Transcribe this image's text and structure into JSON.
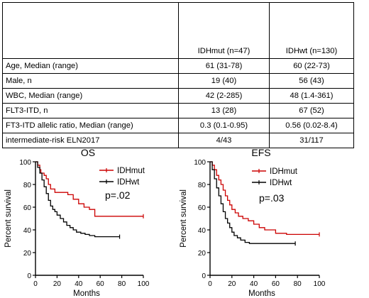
{
  "table": {
    "columns": [
      "",
      "IDHmut (n=47)",
      "IDHwt (n=130)"
    ],
    "rows": [
      [
        "Age, Median (range)",
        "61 (31-78)",
        "60 (22-73)"
      ],
      [
        "Male, n",
        "19 (40)",
        "56 (43)"
      ],
      [
        "WBC, Median (range)",
        "42 (2-285)",
        "48 (1.4-361)"
      ],
      [
        "FLT3-ITD, n",
        "13 (28)",
        "67 (52)"
      ],
      [
        "FT3-ITD allelic ratio, Median (range)",
        "0.3 (0.1-0.95)",
        "0.56 (0.02-8.4)"
      ],
      [
        "intermediate-risk ELN2017",
        "4/43",
        "31/117"
      ]
    ]
  },
  "chart_data": [
    {
      "type": "line",
      "title": "OS",
      "xlabel": "Months",
      "ylabel": "Percent survival",
      "xlim": [
        0,
        100
      ],
      "ylim": [
        0,
        100
      ],
      "xticks": [
        0,
        20,
        40,
        60,
        80,
        100
      ],
      "yticks": [
        0,
        20,
        40,
        60,
        80,
        100
      ],
      "annotation": "p=.02",
      "legend_position": "top-right",
      "series": [
        {
          "name": "IDHmut",
          "color": "#cc0000",
          "x": [
            0,
            2,
            4,
            5,
            8,
            10,
            12,
            14,
            18,
            22,
            27,
            30,
            35,
            40,
            45,
            50,
            55,
            62,
            70,
            75,
            100
          ],
          "y": [
            100,
            97,
            93,
            90,
            88,
            85,
            80,
            76,
            73,
            73,
            73,
            71,
            67,
            63,
            60,
            58,
            52,
            52,
            52,
            52,
            52
          ]
        },
        {
          "name": "IDHwt",
          "color": "#000000",
          "x": [
            0,
            2,
            4,
            6,
            8,
            10,
            12,
            14,
            16,
            18,
            20,
            23,
            26,
            29,
            32,
            35,
            38,
            42,
            46,
            50,
            55,
            60,
            65,
            70,
            78
          ],
          "y": [
            100,
            95,
            90,
            84,
            78,
            72,
            66,
            61,
            58,
            56,
            53,
            50,
            47,
            44,
            42,
            40,
            38,
            37,
            36,
            35,
            34,
            34,
            34,
            34,
            34
          ]
        }
      ]
    },
    {
      "type": "line",
      "title": "EFS",
      "xlabel": "Months",
      "ylabel": "Percent survival",
      "xlim": [
        0,
        100
      ],
      "ylim": [
        0,
        100
      ],
      "xticks": [
        0,
        20,
        40,
        60,
        80,
        100
      ],
      "yticks": [
        0,
        20,
        40,
        60,
        80,
        100
      ],
      "annotation": "p=.03",
      "legend_position": "top-right",
      "series": [
        {
          "name": "IDHmut",
          "color": "#cc0000",
          "x": [
            0,
            2,
            4,
            6,
            8,
            10,
            12,
            14,
            16,
            18,
            20,
            23,
            26,
            30,
            35,
            40,
            45,
            50,
            60,
            70,
            80,
            100
          ],
          "y": [
            100,
            97,
            93,
            88,
            84,
            80,
            75,
            70,
            66,
            62,
            58,
            55,
            52,
            50,
            48,
            45,
            42,
            40,
            37,
            36,
            36,
            36
          ]
        },
        {
          "name": "IDHwt",
          "color": "#000000",
          "x": [
            0,
            2,
            4,
            6,
            8,
            10,
            12,
            14,
            16,
            18,
            20,
            22,
            25,
            28,
            32,
            36,
            40,
            45,
            50,
            60,
            70,
            78
          ],
          "y": [
            100,
            93,
            85,
            77,
            70,
            63,
            56,
            50,
            46,
            42,
            38,
            35,
            33,
            31,
            29,
            28,
            28,
            28,
            28,
            28,
            28,
            28
          ]
        }
      ]
    }
  ]
}
